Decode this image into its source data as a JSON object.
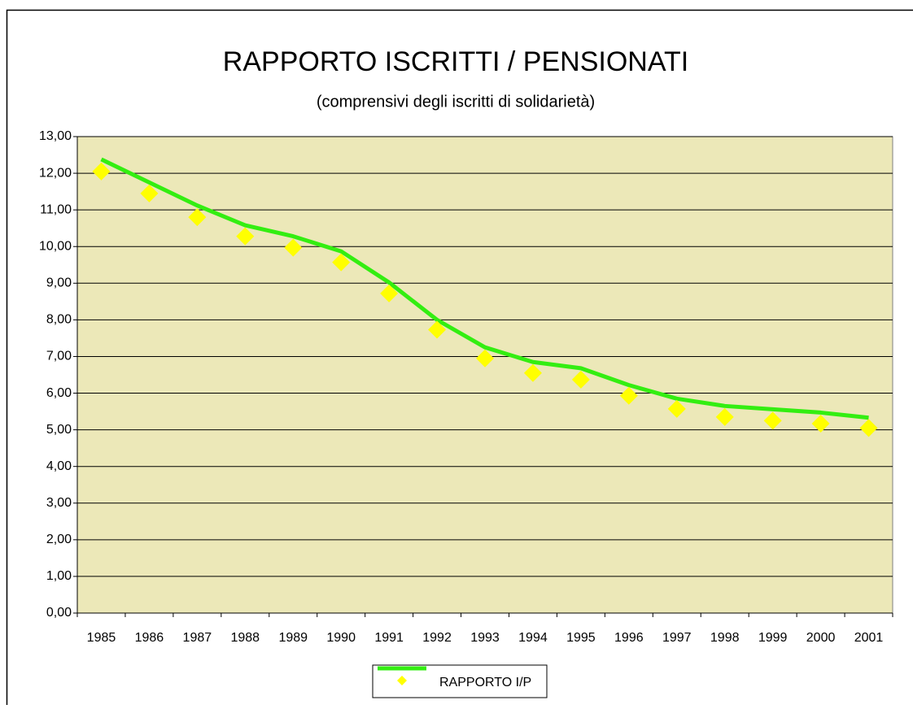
{
  "chart_data": {
    "type": "line",
    "title": "RAPPORTO ISCRITTI / PENSIONATI",
    "subtitle": "(comprensivi degli iscritti di solidarietà)",
    "categories": [
      "1985",
      "1986",
      "1987",
      "1988",
      "1989",
      "1990",
      "1991",
      "1992",
      "1993",
      "1994",
      "1995",
      "1996",
      "1997",
      "1998",
      "1999",
      "2000",
      "2001"
    ],
    "series": [
      {
        "name": "RAPPORTO I/P",
        "color": "#33ee11",
        "marker_color": "#ffff00",
        "values": [
          12.05,
          11.45,
          10.8,
          10.28,
          9.97,
          9.57,
          8.72,
          7.73,
          6.95,
          6.55,
          6.37,
          5.93,
          5.57,
          5.35,
          5.25,
          5.17,
          5.05
        ],
        "line_values": [
          12.38,
          11.75,
          11.12,
          10.58,
          10.28,
          9.87,
          9.02,
          8.0,
          7.25,
          6.85,
          6.68,
          6.22,
          5.85,
          5.65,
          5.56,
          5.47,
          5.33
        ]
      }
    ],
    "ylim": [
      0,
      13
    ],
    "yticks": [
      {
        "value": 0,
        "label": "0,00"
      },
      {
        "value": 1,
        "label": "1,00"
      },
      {
        "value": 2,
        "label": "2,00"
      },
      {
        "value": 3,
        "label": "3,00"
      },
      {
        "value": 4,
        "label": "4,00"
      },
      {
        "value": 5,
        "label": "5,00"
      },
      {
        "value": 6,
        "label": "6,00"
      },
      {
        "value": 7,
        "label": "7,00"
      },
      {
        "value": 8,
        "label": "8,00"
      },
      {
        "value": 9,
        "label": "9,00"
      },
      {
        "value": 10,
        "label": "10,00"
      },
      {
        "value": 11,
        "label": "11,00"
      },
      {
        "value": 12,
        "label": "12,00"
      },
      {
        "value": 13,
        "label": "13,00"
      }
    ],
    "grid": true,
    "plot_background": "#ece8b8"
  }
}
